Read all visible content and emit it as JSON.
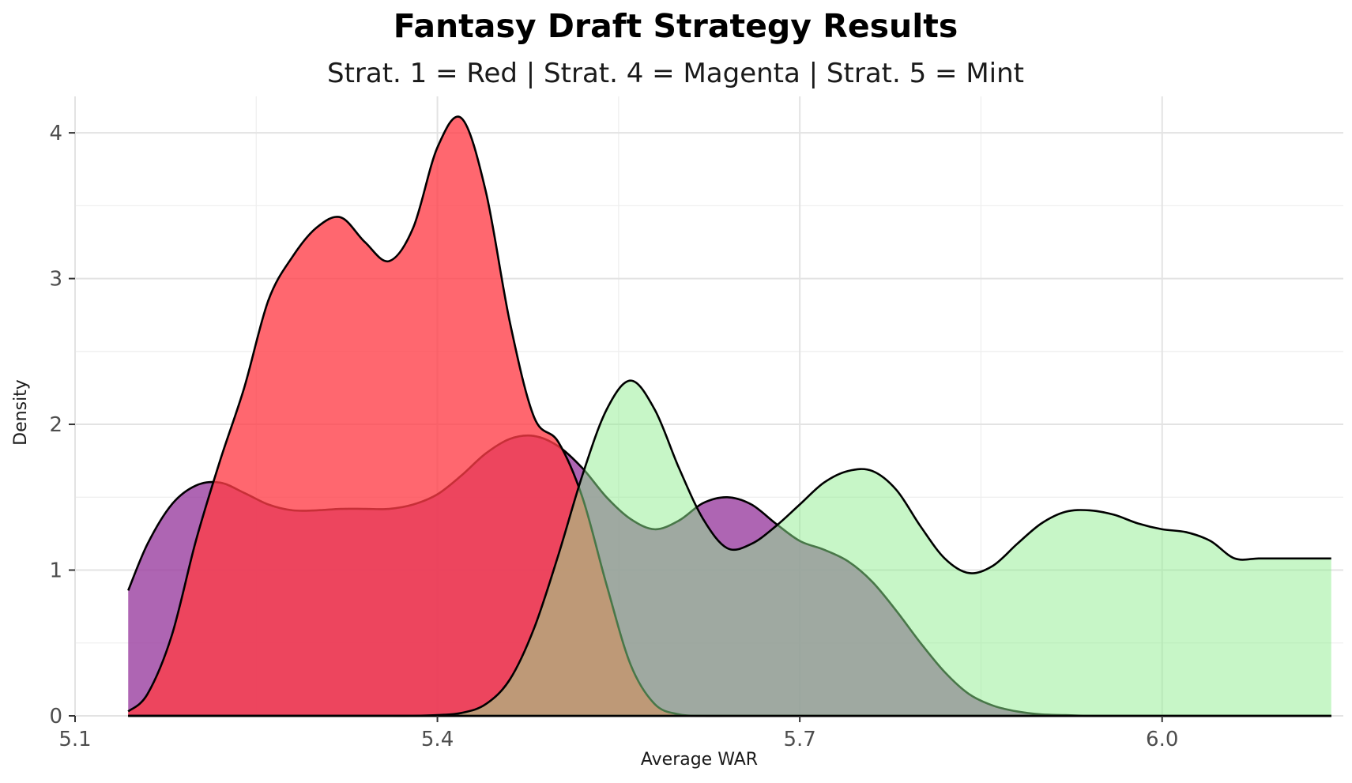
{
  "title": "Fantasy Draft Strategy Results",
  "subtitle": "Strat. 1 = Red | Strat. 4 = Magenta | Strat. 5 = Mint",
  "chart_data": {
    "type": "area",
    "subtype": "density",
    "title": "Fantasy Draft Strategy Results",
    "subtitle": "Strat. 1 = Red | Strat. 4 = Magenta | Strat. 5 = Mint",
    "xlabel": "Average WAR",
    "ylabel": "Density",
    "xlim": [
      5.1,
      6.15
    ],
    "ylim": [
      0,
      4.25
    ],
    "x_ticks": [
      5.1,
      5.4,
      5.7,
      6.0
    ],
    "x_tick_labels": [
      "5.1",
      "5.4",
      "5.7",
      "6.0"
    ],
    "y_ticks": [
      0,
      1,
      2,
      3,
      4
    ],
    "y_tick_labels": [
      "0",
      "1",
      "2",
      "3",
      "4"
    ],
    "grid": true,
    "legend": "none",
    "series": [
      {
        "color": "#9a3fa0",
        "opacity": 0.8,
        "x": [
          5.144,
          5.16,
          5.18,
          5.2,
          5.22,
          5.24,
          5.26,
          5.28,
          5.3,
          5.32,
          5.34,
          5.36,
          5.38,
          5.4,
          5.42,
          5.44,
          5.46,
          5.48,
          5.5,
          5.52,
          5.54,
          5.56,
          5.58,
          5.6,
          5.62,
          5.64,
          5.66,
          5.68,
          5.7,
          5.72,
          5.74,
          5.76,
          5.78,
          5.8,
          5.82,
          5.84,
          5.86,
          5.88,
          5.9,
          5.92,
          5.94,
          5.96,
          5.98,
          6.0,
          6.02,
          6.04,
          6.06,
          6.08,
          6.1,
          6.14
        ],
        "values": [
          0.86,
          1.18,
          1.45,
          1.58,
          1.6,
          1.53,
          1.45,
          1.41,
          1.41,
          1.42,
          1.42,
          1.42,
          1.45,
          1.52,
          1.65,
          1.8,
          1.9,
          1.92,
          1.85,
          1.7,
          1.5,
          1.35,
          1.28,
          1.34,
          1.46,
          1.5,
          1.45,
          1.32,
          1.2,
          1.14,
          1.06,
          0.92,
          0.72,
          0.5,
          0.3,
          0.15,
          0.07,
          0.03,
          0.01,
          0.005,
          0,
          0,
          0,
          0,
          0,
          0,
          0,
          0,
          0,
          0
        ]
      },
      {
        "color": "#ff3c46",
        "opacity": 0.78,
        "x": [
          5.144,
          5.16,
          5.18,
          5.2,
          5.22,
          5.24,
          5.26,
          5.28,
          5.3,
          5.32,
          5.34,
          5.36,
          5.38,
          5.4,
          5.42,
          5.44,
          5.46,
          5.48,
          5.5,
          5.52,
          5.54,
          5.56,
          5.58,
          5.6,
          5.62,
          5.64,
          5.66,
          5.68,
          5.7,
          5.72,
          5.74,
          5.76,
          5.78,
          5.8,
          5.82,
          5.84,
          5.86,
          5.88,
          5.9,
          5.92,
          5.94,
          5.96,
          5.98,
          6.0,
          6.02,
          6.04,
          6.06,
          6.08,
          6.1,
          6.14
        ],
        "values": [
          0.03,
          0.15,
          0.55,
          1.2,
          1.75,
          2.25,
          2.85,
          3.15,
          3.35,
          3.42,
          3.25,
          3.12,
          3.35,
          3.9,
          4.1,
          3.6,
          2.7,
          2.05,
          1.88,
          1.5,
          0.9,
          0.35,
          0.08,
          0.01,
          0,
          0,
          0,
          0,
          0,
          0,
          0,
          0,
          0,
          0,
          0,
          0,
          0,
          0,
          0,
          0,
          0,
          0,
          0,
          0,
          0,
          0,
          0,
          0,
          0,
          0
        ]
      },
      {
        "color": "#90ee90",
        "opacity": 0.5,
        "x": [
          5.144,
          5.16,
          5.18,
          5.2,
          5.22,
          5.24,
          5.26,
          5.28,
          5.3,
          5.32,
          5.34,
          5.36,
          5.38,
          5.4,
          5.42,
          5.44,
          5.46,
          5.48,
          5.5,
          5.52,
          5.54,
          5.56,
          5.58,
          5.6,
          5.62,
          5.64,
          5.66,
          5.68,
          5.7,
          5.72,
          5.74,
          5.76,
          5.78,
          5.8,
          5.82,
          5.84,
          5.86,
          5.88,
          5.9,
          5.92,
          5.94,
          5.96,
          5.98,
          6.0,
          6.02,
          6.04,
          6.06,
          6.08,
          6.1,
          6.14
        ],
        "values": [
          0,
          0,
          0,
          0,
          0,
          0,
          0,
          0,
          0,
          0,
          0,
          0,
          0,
          0.005,
          0.02,
          0.08,
          0.25,
          0.6,
          1.1,
          1.65,
          2.1,
          2.3,
          2.1,
          1.7,
          1.35,
          1.15,
          1.18,
          1.3,
          1.45,
          1.6,
          1.68,
          1.68,
          1.55,
          1.3,
          1.08,
          0.98,
          1.03,
          1.18,
          1.32,
          1.4,
          1.41,
          1.38,
          1.32,
          1.28,
          1.26,
          1.2,
          1.08,
          1.08,
          1.08,
          1.08
        ]
      }
    ]
  }
}
